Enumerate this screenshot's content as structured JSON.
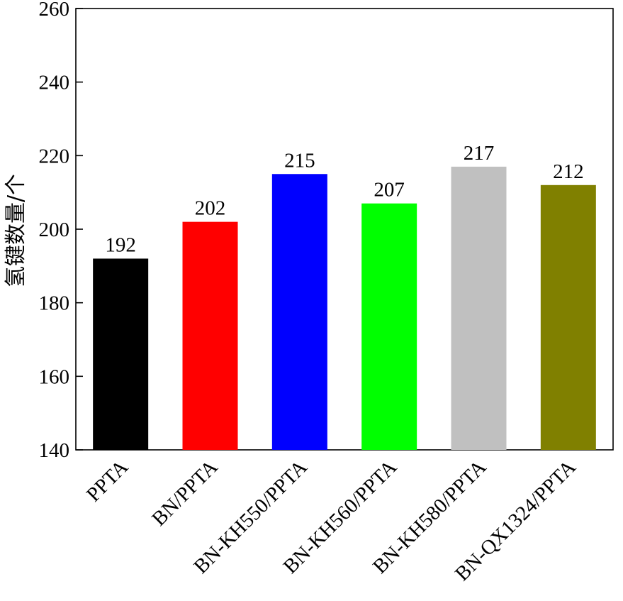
{
  "chart_data": {
    "type": "bar",
    "categories": [
      "PPTA",
      "BN/PPTA",
      "BN-KH550/PPTA",
      "BN-KH560/PPTA",
      "BN-KH580/PPTA",
      "BN-QX1324/PPTA"
    ],
    "values": [
      192,
      202,
      215,
      207,
      217,
      212
    ],
    "data_labels": [
      "192",
      "202",
      "215",
      "207",
      "217",
      "212"
    ],
    "colors": [
      "#000000",
      "#ff0000",
      "#0000ff",
      "#00ff00",
      "#c0c0c0",
      "#808000"
    ],
    "title": "",
    "xlabel": "",
    "ylabel": "氢键数量/个",
    "ylim": [
      140,
      260
    ],
    "yticks": [
      140,
      160,
      180,
      200,
      220,
      240,
      260
    ],
    "grid": false,
    "legend": "none"
  }
}
